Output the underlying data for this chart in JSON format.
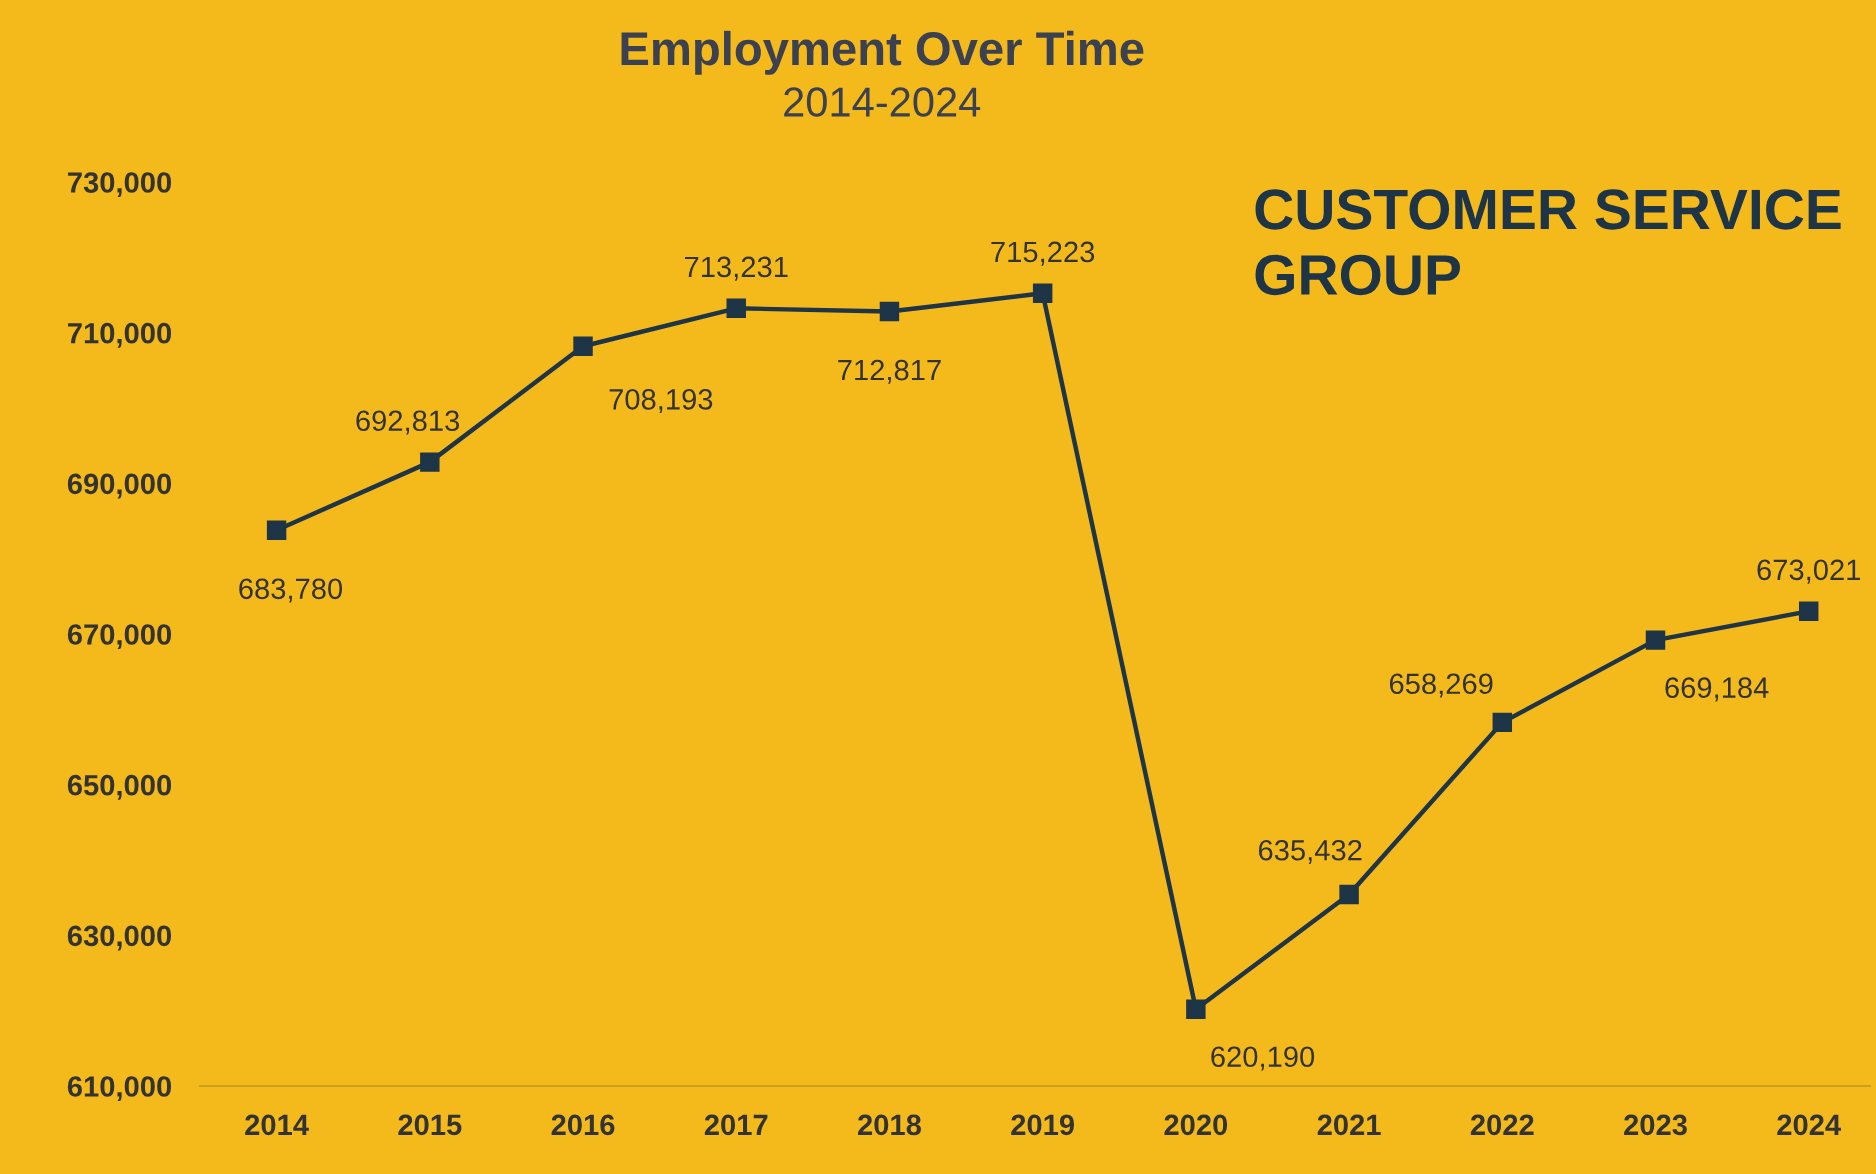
{
  "chart_data": {
    "type": "line",
    "title": "Employment Over Time",
    "subtitle": "2014-2024",
    "categories": [
      "2014",
      "2015",
      "2016",
      "2017",
      "2018",
      "2019",
      "2020",
      "2021",
      "2022",
      "2023",
      "2024"
    ],
    "values": [
      683780,
      692813,
      708193,
      713231,
      712817,
      715223,
      620190,
      635432,
      658269,
      669184,
      673021
    ],
    "value_labels": [
      "683,780",
      "692,813",
      "708,193",
      "713,231",
      "712,817",
      "715,223",
      "620,190",
      "635,432",
      "658,269",
      "669,184",
      "673,021"
    ],
    "color": "#1e3447",
    "marker": "square",
    "line_style": "solid",
    "grid": false,
    "legend": false,
    "ylim": [
      610000,
      730000
    ],
    "yticks": [
      {
        "value": 610000,
        "label": "610,000"
      },
      {
        "value": 630000,
        "label": "630,000"
      },
      {
        "value": 650000,
        "label": "650,000"
      },
      {
        "value": 670000,
        "label": "670,000"
      },
      {
        "value": 690000,
        "label": "690,000"
      },
      {
        "value": 710000,
        "label": "710,000"
      },
      {
        "value": 730000,
        "label": "730,000"
      }
    ],
    "annotations": [
      "CUSTOMER SERVICE\nGROUP"
    ]
  }
}
